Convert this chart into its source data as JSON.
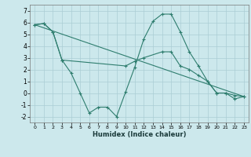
{
  "xlabel": "Humidex (Indice chaleur)",
  "line1_x": [
    0,
    1,
    2,
    3,
    4,
    5,
    6,
    7,
    8,
    9,
    10,
    11,
    12,
    13,
    14,
    15,
    16,
    17,
    18,
    19,
    20,
    21,
    22,
    23
  ],
  "line1_y": [
    5.8,
    5.9,
    5.2,
    2.8,
    1.7,
    0.0,
    -1.7,
    -1.2,
    -1.2,
    -2.0,
    0.1,
    2.2,
    4.6,
    6.1,
    6.7,
    6.7,
    5.2,
    3.5,
    2.3,
    1.0,
    0.0,
    0.0,
    -0.5,
    -0.3
  ],
  "line2_x": [
    0,
    1,
    2,
    3,
    10,
    11,
    12,
    14,
    15,
    16,
    17,
    18,
    19,
    20,
    21,
    22,
    23
  ],
  "line2_y": [
    5.8,
    5.9,
    5.2,
    2.8,
    2.3,
    2.7,
    3.0,
    3.5,
    3.5,
    2.3,
    2.0,
    1.5,
    1.0,
    0.0,
    0.0,
    -0.2,
    -0.3
  ],
  "line3_x": [
    0,
    23
  ],
  "line3_y": [
    5.8,
    -0.3
  ],
  "color": "#2e7d6e",
  "bg_color": "#cce8ec",
  "grid_color": "#aacdd4",
  "xlim": [
    -0.5,
    23.5
  ],
  "ylim": [
    -2.5,
    7.5
  ],
  "yticks": [
    -2,
    -1,
    0,
    1,
    2,
    3,
    4,
    5,
    6,
    7
  ],
  "xticks": [
    0,
    1,
    2,
    3,
    4,
    5,
    6,
    7,
    8,
    9,
    10,
    11,
    12,
    13,
    14,
    15,
    16,
    17,
    18,
    19,
    20,
    21,
    22,
    23
  ]
}
